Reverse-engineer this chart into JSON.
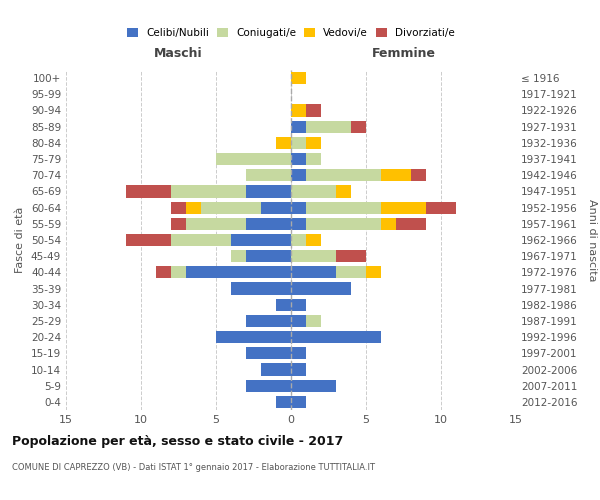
{
  "age_groups": [
    "0-4",
    "5-9",
    "10-14",
    "15-19",
    "20-24",
    "25-29",
    "30-34",
    "35-39",
    "40-44",
    "45-49",
    "50-54",
    "55-59",
    "60-64",
    "65-69",
    "70-74",
    "75-79",
    "80-84",
    "85-89",
    "90-94",
    "95-99",
    "100+"
  ],
  "birth_years": [
    "2012-2016",
    "2007-2011",
    "2002-2006",
    "1997-2001",
    "1992-1996",
    "1987-1991",
    "1982-1986",
    "1977-1981",
    "1972-1976",
    "1967-1971",
    "1962-1966",
    "1957-1961",
    "1952-1956",
    "1947-1951",
    "1942-1946",
    "1937-1941",
    "1932-1936",
    "1927-1931",
    "1922-1926",
    "1917-1921",
    "≤ 1916"
  ],
  "male": {
    "celibi": [
      1,
      3,
      2,
      3,
      5,
      3,
      1,
      4,
      7,
      3,
      4,
      3,
      2,
      3,
      0,
      0,
      0,
      0,
      0,
      0,
      0
    ],
    "coniugati": [
      0,
      0,
      0,
      0,
      0,
      0,
      0,
      0,
      1,
      1,
      4,
      4,
      4,
      5,
      3,
      5,
      0,
      0,
      0,
      0,
      0
    ],
    "vedovi": [
      0,
      0,
      0,
      0,
      0,
      0,
      0,
      0,
      0,
      0,
      0,
      0,
      1,
      0,
      0,
      0,
      1,
      0,
      0,
      0,
      0
    ],
    "divorziati": [
      0,
      0,
      0,
      0,
      0,
      0,
      0,
      0,
      1,
      0,
      3,
      1,
      1,
      3,
      0,
      0,
      0,
      0,
      0,
      0,
      0
    ]
  },
  "female": {
    "nubili": [
      1,
      3,
      1,
      1,
      6,
      1,
      1,
      4,
      3,
      0,
      0,
      1,
      1,
      0,
      1,
      1,
      0,
      1,
      0,
      0,
      0
    ],
    "coniugate": [
      0,
      0,
      0,
      0,
      0,
      1,
      0,
      0,
      2,
      3,
      1,
      5,
      5,
      3,
      5,
      1,
      1,
      3,
      0,
      0,
      0
    ],
    "vedove": [
      0,
      0,
      0,
      0,
      0,
      0,
      0,
      0,
      1,
      0,
      1,
      1,
      3,
      1,
      2,
      0,
      1,
      0,
      1,
      0,
      1
    ],
    "divorziate": [
      0,
      0,
      0,
      0,
      0,
      0,
      0,
      0,
      0,
      2,
      0,
      2,
      2,
      0,
      1,
      0,
      0,
      1,
      1,
      0,
      0
    ]
  },
  "color_celibi": "#4472c4",
  "color_coniugati": "#c6d9a0",
  "color_vedovi": "#ffc000",
  "color_divorziati": "#c0504d",
  "xlim": 15,
  "title": "Popolazione per età, sesso e stato civile - 2017",
  "subtitle": "COMUNE DI CAPREZZO (VB) - Dati ISTAT 1° gennaio 2017 - Elaborazione TUTTITALIA.IT",
  "ylabel_left": "Fasce di età",
  "ylabel_right": "Anni di nascita",
  "xlabel_male": "Maschi",
  "xlabel_female": "Femmine"
}
